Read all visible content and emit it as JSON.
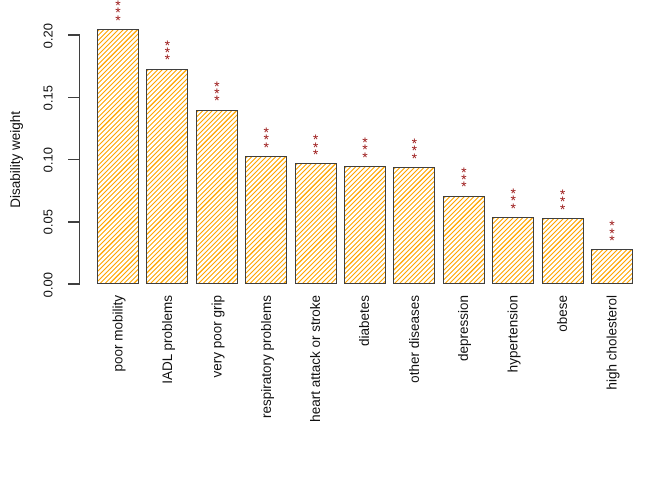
{
  "chart_data": {
    "type": "bar",
    "title": "",
    "xlabel": "",
    "ylabel": "Disability weight",
    "categories": [
      "poor mobility",
      "IADL problems",
      "very poor grip",
      "respiratory problems",
      "heart attack or stroke",
      "diabetes",
      "other diseases",
      "depression",
      "hypertension",
      "obese",
      "high cholesterol"
    ],
    "values": [
      0.205,
      0.173,
      0.14,
      0.103,
      0.097,
      0.095,
      0.094,
      0.071,
      0.054,
      0.053,
      0.028
    ],
    "significance": [
      "***",
      "***",
      "***",
      "***",
      "***",
      "***",
      "***",
      "***",
      "***",
      "***",
      "***"
    ],
    "yticks": [
      0.0,
      0.05,
      0.1,
      0.15,
      0.2
    ],
    "ytick_labels": [
      "0.00",
      "0.05",
      "0.10",
      "0.15",
      "0.20"
    ],
    "ylim": [
      0,
      0.205
    ],
    "grid": false,
    "legend": false,
    "x_label_rotation_deg": 90,
    "y_label_rotation_deg": 90,
    "bar_style": {
      "fill": "#ffffff",
      "hatch": "diagonal-45-forward-slash",
      "hatch_color": "#FFA500",
      "border_color": "#3f3f3f"
    },
    "significance_color": "#9B1717",
    "axis_color": "#3f3f3f",
    "text_color": "#111111"
  }
}
